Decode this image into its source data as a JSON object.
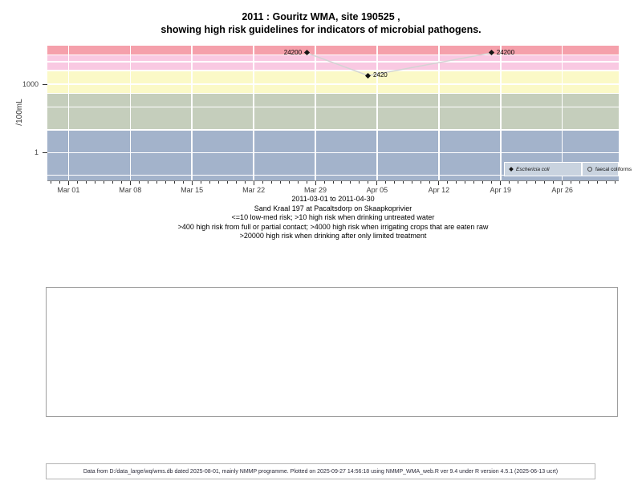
{
  "title": {
    "line1": "2011 : Gouritz WMA, site 190525 ,",
    "line2": "showing high risk guidelines for indicators of microbial pathogens."
  },
  "chart_data": {
    "type": "scatter",
    "ylabel": "/100mL",
    "y_scale": "log",
    "ylim": [
      0.06,
      50000
    ],
    "y_ticks": [
      {
        "value": 1000,
        "label": "1000"
      },
      {
        "value": 1,
        "label": "1"
      }
    ],
    "y_gridlines": [
      0.1,
      1,
      10,
      100,
      400,
      1000,
      4000,
      10000,
      20000
    ],
    "x_start_date": "2011-03-01",
    "xlim_days": [
      -2.4,
      62.4
    ],
    "x_major_ticks": [
      {
        "day": 0,
        "label": "Mar 01"
      },
      {
        "day": 7,
        "label": "Mar 08"
      },
      {
        "day": 14,
        "label": "Mar 15"
      },
      {
        "day": 21,
        "label": "Mar 22"
      },
      {
        "day": 28,
        "label": "Mar 29"
      },
      {
        "day": 35,
        "label": "Apr 05"
      },
      {
        "day": 42,
        "label": "Apr 12"
      },
      {
        "day": 49,
        "label": "Apr 19"
      },
      {
        "day": 56,
        "label": "Apr 26"
      }
    ],
    "bands": [
      {
        "name": "low-med-risk",
        "from": 0.06,
        "to": 10,
        "color": "#a3b3cb"
      },
      {
        "name": "high-risk-drinking-untreated",
        "from": 10,
        "to": 400,
        "color": "#c5cebc"
      },
      {
        "name": "high-risk-contact",
        "from": 400,
        "to": 4000,
        "color": "#fbf9c7"
      },
      {
        "name": "high-risk-irrigation",
        "from": 4000,
        "to": 20000,
        "color": "#f9c9e2"
      },
      {
        "name": "high-risk-limited-treatment",
        "from": 20000,
        "to": 50000,
        "color": "#f5a0ab"
      }
    ],
    "line_color": "#d3d3d3",
    "series": [
      {
        "name": "Eschericia coli",
        "marker": "filled-diamond",
        "italic": true,
        "points": [
          {
            "date": "2011-03-28",
            "day": 27,
            "value": 24200,
            "label": "24200",
            "label_side": "left"
          },
          {
            "date": "2011-04-04",
            "day": 34,
            "value": 2420,
            "label": "2420",
            "label_side": "right"
          },
          {
            "date": "2011-04-18",
            "day": 48,
            "value": 24200,
            "label": "24200",
            "label_side": "right"
          }
        ]
      },
      {
        "name": "faecal coliforms",
        "marker": "open-circle",
        "italic": false,
        "points": []
      }
    ]
  },
  "subtitle": {
    "date_range": "2011-03-01 to 2011-04-30",
    "station": "Sand Kraal 197 at Pacaltsdorp on Skaapkoprivier",
    "guideline1": "<=10 low-med risk; >10 high risk when drinking untreated water",
    "guideline2": ">400 high risk from full or partial contact; >4000 high risk when irrigating crops that are eaten raw",
    "guideline3": ">20000 high risk when drinking after only limited treatment"
  },
  "footer": {
    "text": "Data from D:/data_large/wq/wms.db dated 2025-08-01, mainly NMMP programme. Plotted on 2025-09-27 14:56:18 using NMMP_WMA_web.R ver 9.4 under R version 4.5.1 (2025-06-13 ucrt)"
  }
}
